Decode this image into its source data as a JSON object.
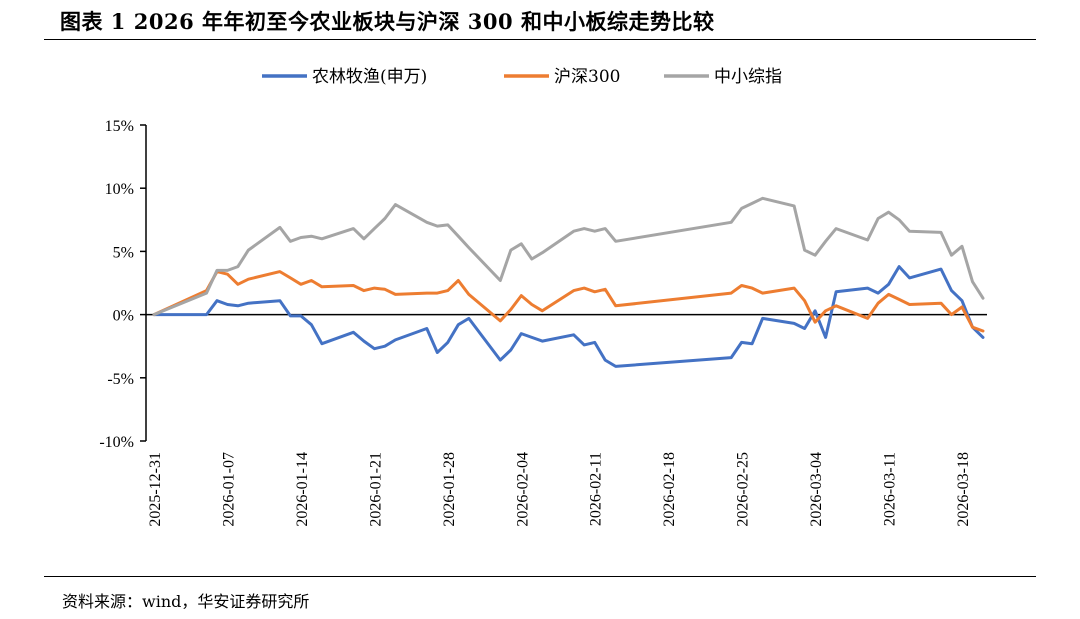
{
  "title": "图表 1 2026 年年初至今农业板块与沪深 300 和中小板综走势比较",
  "source": "资料来源：wind，华安证券研究所",
  "chart_data": {
    "type": "line",
    "title": "图表 1 2026 年年初至今农业板块与沪深 300 和中小板综走势比较",
    "xlabel": "",
    "ylabel": "",
    "ylim": [
      -0.1,
      0.15
    ],
    "y_ticks": [
      -0.1,
      -0.05,
      0,
      0.05,
      0.1,
      0.15
    ],
    "y_tick_labels": [
      "-10%",
      "-5%",
      "0%",
      "5%",
      "10%",
      "15%"
    ],
    "x_range": [
      "2025-12-31",
      "2026-03-20"
    ],
    "x_ticks": [
      "2025-12-31",
      "2026-01-07",
      "2026-01-14",
      "2026-01-21",
      "2026-01-28",
      "2026-02-04",
      "2026-02-11",
      "2026-02-18",
      "2026-02-25",
      "2026-03-04",
      "2026-03-11",
      "2026-03-18"
    ],
    "grid": false,
    "legend_position": "top",
    "series": [
      {
        "name": "农林牧渔(申万)",
        "color": "#4472C4",
        "points": [
          [
            "2025-12-31",
            0.0
          ],
          [
            "2026-01-05",
            0.0
          ],
          [
            "2026-01-06",
            0.011
          ],
          [
            "2026-01-07",
            0.008
          ],
          [
            "2026-01-08",
            0.007
          ],
          [
            "2026-01-09",
            0.009
          ],
          [
            "2026-01-12",
            0.011
          ],
          [
            "2026-01-13",
            -0.001
          ],
          [
            "2026-01-14",
            -0.001
          ],
          [
            "2026-01-15",
            -0.008
          ],
          [
            "2026-01-16",
            -0.023
          ],
          [
            "2026-01-19",
            -0.014
          ],
          [
            "2026-01-20",
            -0.021
          ],
          [
            "2026-01-21",
            -0.027
          ],
          [
            "2026-01-22",
            -0.025
          ],
          [
            "2026-01-23",
            -0.02
          ],
          [
            "2026-01-26",
            -0.011
          ],
          [
            "2026-01-27",
            -0.03
          ],
          [
            "2026-01-28",
            -0.022
          ],
          [
            "2026-01-29",
            -0.008
          ],
          [
            "2026-01-30",
            -0.003
          ],
          [
            "2026-02-02",
            -0.036
          ],
          [
            "2026-02-03",
            -0.028
          ],
          [
            "2026-02-04",
            -0.015
          ],
          [
            "2026-02-05",
            -0.018
          ],
          [
            "2026-02-06",
            -0.021
          ],
          [
            "2026-02-09",
            -0.016
          ],
          [
            "2026-02-10",
            -0.024
          ],
          [
            "2026-02-11",
            -0.022
          ],
          [
            "2026-02-12",
            -0.036
          ],
          [
            "2026-02-13",
            -0.041
          ],
          [
            "2026-02-24",
            -0.034
          ],
          [
            "2026-02-25",
            -0.022
          ],
          [
            "2026-02-26",
            -0.023
          ],
          [
            "2026-02-27",
            -0.003
          ],
          [
            "2026-03-02",
            -0.007
          ],
          [
            "2026-03-03",
            -0.011
          ],
          [
            "2026-03-04",
            0.003
          ],
          [
            "2026-03-05",
            -0.018
          ],
          [
            "2026-03-06",
            0.018
          ],
          [
            "2026-03-09",
            0.021
          ],
          [
            "2026-03-10",
            0.017
          ],
          [
            "2026-03-11",
            0.024
          ],
          [
            "2026-03-12",
            0.038
          ],
          [
            "2026-03-13",
            0.029
          ],
          [
            "2026-03-16",
            0.036
          ],
          [
            "2026-03-17",
            0.019
          ],
          [
            "2026-03-18",
            0.011
          ],
          [
            "2026-03-19",
            -0.01
          ],
          [
            "2026-03-20",
            -0.018
          ]
        ]
      },
      {
        "name": "沪深300",
        "color": "#ED7D31",
        "points": [
          [
            "2025-12-31",
            0.0
          ],
          [
            "2026-01-05",
            0.019
          ],
          [
            "2026-01-06",
            0.034
          ],
          [
            "2026-01-07",
            0.032
          ],
          [
            "2026-01-08",
            0.024
          ],
          [
            "2026-01-09",
            0.028
          ],
          [
            "2026-01-12",
            0.034
          ],
          [
            "2026-01-13",
            0.029
          ],
          [
            "2026-01-14",
            0.024
          ],
          [
            "2026-01-15",
            0.027
          ],
          [
            "2026-01-16",
            0.022
          ],
          [
            "2026-01-19",
            0.023
          ],
          [
            "2026-01-20",
            0.019
          ],
          [
            "2026-01-21",
            0.021
          ],
          [
            "2026-01-22",
            0.02
          ],
          [
            "2026-01-23",
            0.016
          ],
          [
            "2026-01-26",
            0.017
          ],
          [
            "2026-01-27",
            0.017
          ],
          [
            "2026-01-28",
            0.019
          ],
          [
            "2026-01-29",
            0.027
          ],
          [
            "2026-01-30",
            0.016
          ],
          [
            "2026-02-02",
            -0.005
          ],
          [
            "2026-02-03",
            0.004
          ],
          [
            "2026-02-04",
            0.015
          ],
          [
            "2026-02-05",
            0.008
          ],
          [
            "2026-02-06",
            0.003
          ],
          [
            "2026-02-09",
            0.019
          ],
          [
            "2026-02-10",
            0.021
          ],
          [
            "2026-02-11",
            0.018
          ],
          [
            "2026-02-12",
            0.02
          ],
          [
            "2026-02-13",
            0.007
          ],
          [
            "2026-02-24",
            0.017
          ],
          [
            "2026-02-25",
            0.023
          ],
          [
            "2026-02-26",
            0.021
          ],
          [
            "2026-02-27",
            0.017
          ],
          [
            "2026-03-02",
            0.021
          ],
          [
            "2026-03-03",
            0.011
          ],
          [
            "2026-03-04",
            -0.006
          ],
          [
            "2026-03-05",
            0.003
          ],
          [
            "2026-03-06",
            0.007
          ],
          [
            "2026-03-09",
            -0.003
          ],
          [
            "2026-03-10",
            0.009
          ],
          [
            "2026-03-11",
            0.016
          ],
          [
            "2026-03-12",
            0.012
          ],
          [
            "2026-03-13",
            0.008
          ],
          [
            "2026-03-16",
            0.009
          ],
          [
            "2026-03-17",
            0.0
          ],
          [
            "2026-03-18",
            0.006
          ],
          [
            "2026-03-19",
            -0.01
          ],
          [
            "2026-03-20",
            -0.013
          ]
        ]
      },
      {
        "name": "中小综指",
        "color": "#A5A5A5",
        "points": [
          [
            "2025-12-31",
            0.0
          ],
          [
            "2026-01-05",
            0.017
          ],
          [
            "2026-01-06",
            0.035
          ],
          [
            "2026-01-07",
            0.035
          ],
          [
            "2026-01-08",
            0.038
          ],
          [
            "2026-01-09",
            0.051
          ],
          [
            "2026-01-12",
            0.069
          ],
          [
            "2026-01-13",
            0.058
          ],
          [
            "2026-01-14",
            0.061
          ],
          [
            "2026-01-15",
            0.062
          ],
          [
            "2026-01-16",
            0.06
          ],
          [
            "2026-01-19",
            0.068
          ],
          [
            "2026-01-20",
            0.06
          ],
          [
            "2026-01-21",
            0.068
          ],
          [
            "2026-01-22",
            0.076
          ],
          [
            "2026-01-23",
            0.087
          ],
          [
            "2026-01-26",
            0.073
          ],
          [
            "2026-01-27",
            0.07
          ],
          [
            "2026-01-28",
            0.071
          ],
          [
            "2026-01-29",
            0.062
          ],
          [
            "2026-01-30",
            0.053
          ],
          [
            "2026-02-02",
            0.027
          ],
          [
            "2026-02-03",
            0.051
          ],
          [
            "2026-02-04",
            0.056
          ],
          [
            "2026-02-05",
            0.044
          ],
          [
            "2026-02-06",
            0.049
          ],
          [
            "2026-02-09",
            0.066
          ],
          [
            "2026-02-10",
            0.068
          ],
          [
            "2026-02-11",
            0.066
          ],
          [
            "2026-02-12",
            0.068
          ],
          [
            "2026-02-13",
            0.058
          ],
          [
            "2026-02-24",
            0.073
          ],
          [
            "2026-02-25",
            0.084
          ],
          [
            "2026-02-26",
            0.088
          ],
          [
            "2026-02-27",
            0.092
          ],
          [
            "2026-03-02",
            0.086
          ],
          [
            "2026-03-03",
            0.051
          ],
          [
            "2026-03-04",
            0.047
          ],
          [
            "2026-03-05",
            0.058
          ],
          [
            "2026-03-06",
            0.068
          ],
          [
            "2026-03-09",
            0.059
          ],
          [
            "2026-03-10",
            0.076
          ],
          [
            "2026-03-11",
            0.081
          ],
          [
            "2026-03-12",
            0.075
          ],
          [
            "2026-03-13",
            0.066
          ],
          [
            "2026-03-16",
            0.065
          ],
          [
            "2026-03-17",
            0.047
          ],
          [
            "2026-03-18",
            0.054
          ],
          [
            "2026-03-19",
            0.026
          ],
          [
            "2026-03-20",
            0.013
          ]
        ]
      }
    ]
  }
}
